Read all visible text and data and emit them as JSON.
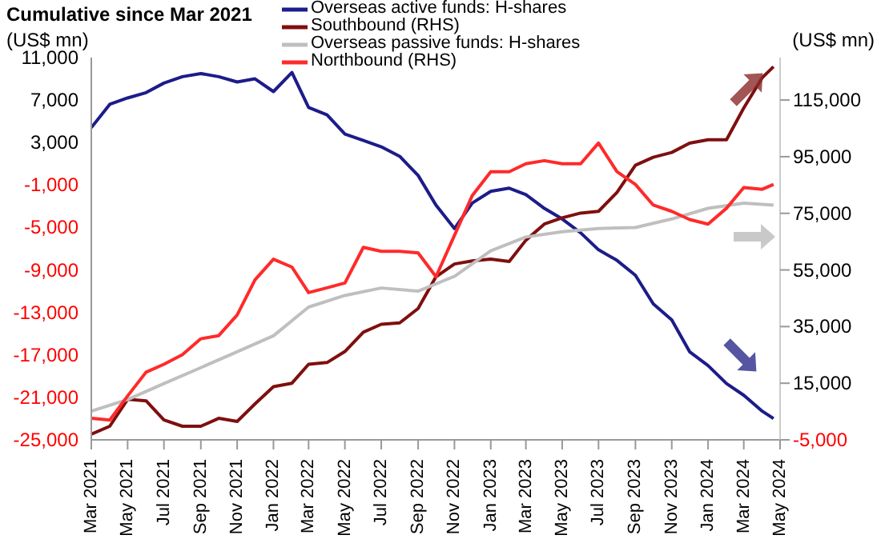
{
  "chart_data": {
    "type": "line",
    "title": "Cumulative since Mar 2021",
    "ylabel": "(US$ mn)",
    "y2label": "(US$ mn)",
    "x": [
      "2021-03",
      "2021-04",
      "2021-05",
      "2021-06",
      "2021-07",
      "2021-08",
      "2021-09",
      "2021-10",
      "2021-11",
      "2021-12",
      "2022-01",
      "2022-02",
      "2022-03",
      "2022-04",
      "2022-05",
      "2022-06",
      "2022-07",
      "2022-08",
      "2022-09",
      "2022-10",
      "2022-11",
      "2022-12",
      "2023-01",
      "2023-02",
      "2023-03",
      "2023-04",
      "2023-05",
      "2023-06",
      "2023-07",
      "2023-08",
      "2023-09",
      "2023-10",
      "2023-11",
      "2023-12",
      "2024-01",
      "2024-02",
      "2024-03",
      "2024-04",
      "2024-04-20"
    ],
    "series": [
      {
        "name": "Overseas active funds: H-shares",
        "color": "#1c1c8a",
        "values": [
          4400,
          6600,
          7200,
          7700,
          8600,
          9200,
          9500,
          9200,
          8700,
          9000,
          7800,
          9600,
          6300,
          5600,
          3800,
          3200,
          2600,
          1700,
          -100,
          -2900,
          -5100,
          -2700,
          -1600,
          -1300,
          -1900,
          -3200,
          -4200,
          -5500,
          -7100,
          -8100,
          -9500,
          -12200,
          -13700,
          -16700,
          -18000,
          -19700,
          -20800,
          -22300,
          -23000
        ]
      },
      {
        "name": "Southbound (RHS)",
        "color": "#7f0f0f",
        "axis": "y2",
        "values": [
          -3000,
          -200,
          9300,
          8800,
          2000,
          -200,
          -200,
          2600,
          1500,
          7700,
          13800,
          15000,
          21700,
          22300,
          26200,
          33000,
          35800,
          36300,
          41400,
          52600,
          57100,
          58200,
          58800,
          58000,
          65500,
          71200,
          73400,
          75100,
          75700,
          82400,
          92000,
          94800,
          96500,
          99800,
          101000,
          101000,
          112200,
          122900,
          126800
        ]
      },
      {
        "name": "Overseas passive funds: H-shares",
        "color": "#bfbfbf",
        "x": [
          "2021-03",
          "2021-05",
          "2021-07",
          "2021-09",
          "2021-11",
          "2022-01",
          "2022-03",
          "2022-05",
          "2022-07",
          "2022-09",
          "2022-11",
          "2023-01",
          "2023-03",
          "2023-05",
          "2023-07",
          "2023-09",
          "2023-11",
          "2024-01",
          "2024-03",
          "2024-04-20"
        ],
        "values": [
          -22300,
          -21200,
          -19700,
          -18200,
          -16700,
          -15200,
          -12500,
          -11400,
          -10700,
          -11000,
          -9600,
          -7200,
          -5900,
          -5400,
          -5100,
          -5000,
          -4200,
          -3200,
          -2700,
          -2900
        ]
      },
      {
        "name": "Northbound (RHS)",
        "color": "#ff2a2a",
        "axis": "y2",
        "values": [
          2600,
          2000,
          10500,
          18900,
          21700,
          25100,
          30700,
          31800,
          39100,
          51500,
          58800,
          56000,
          47000,
          48700,
          50400,
          63000,
          61600,
          61600,
          61000,
          52600,
          67200,
          81300,
          89700,
          89700,
          92500,
          93600,
          92500,
          92500,
          99800,
          89700,
          85200,
          77900,
          75700,
          72800,
          71200,
          76800,
          84100,
          83500,
          85200
        ]
      }
    ],
    "xlim": [
      "2021-03",
      "2024-05"
    ],
    "xticks": [
      {
        "value": "2021-03",
        "label": "Mar 2021"
      },
      {
        "value": "2021-05",
        "label": "May 2021"
      },
      {
        "value": "2021-07",
        "label": "Jul 2021"
      },
      {
        "value": "2021-09",
        "label": "Sep 2021"
      },
      {
        "value": "2021-11",
        "label": "Nov 2021"
      },
      {
        "value": "2022-01",
        "label": "Jan 2022"
      },
      {
        "value": "2022-03",
        "label": "Mar 2022"
      },
      {
        "value": "2022-05",
        "label": "May 2022"
      },
      {
        "value": "2022-07",
        "label": "Jul 2022"
      },
      {
        "value": "2022-09",
        "label": "Sep 2022"
      },
      {
        "value": "2022-11",
        "label": "Nov 2022"
      },
      {
        "value": "2023-01",
        "label": "Jan 2023"
      },
      {
        "value": "2023-03",
        "label": "Mar 2023"
      },
      {
        "value": "2023-05",
        "label": "May 2023"
      },
      {
        "value": "2023-07",
        "label": "Jul 2023"
      },
      {
        "value": "2023-09",
        "label": "Sep 2023"
      },
      {
        "value": "2023-11",
        "label": "Nov 2023"
      },
      {
        "value": "2024-01",
        "label": "Jan 2024"
      },
      {
        "value": "2024-03",
        "label": "Mar 2024"
      },
      {
        "value": "2024-05",
        "label": "May 2024"
      }
    ],
    "ylim": [
      -25000,
      11000
    ],
    "yticks": [
      {
        "value": 11000,
        "label": "11,000"
      },
      {
        "value": 7000,
        "label": "7,000"
      },
      {
        "value": 3000,
        "label": "3,000"
      },
      {
        "value": -1000,
        "label": "-1,000"
      },
      {
        "value": -5000,
        "label": "-5,000"
      },
      {
        "value": -9000,
        "label": "-9,000"
      },
      {
        "value": -13000,
        "label": "-13,000"
      },
      {
        "value": -17000,
        "label": "-17,000"
      },
      {
        "value": -21000,
        "label": "-21,000"
      },
      {
        "value": -25000,
        "label": "-25,000"
      }
    ],
    "y2lim": [
      -5000,
      130000
    ],
    "y2ticks": [
      {
        "value": -5000,
        "label": "-5,000"
      },
      {
        "value": 15000,
        "label": "15,000"
      },
      {
        "value": 35000,
        "label": "35,000"
      },
      {
        "value": 55000,
        "label": "55,000"
      },
      {
        "value": 75000,
        "label": "75,000"
      },
      {
        "value": 95000,
        "label": "95,000"
      },
      {
        "value": 115000,
        "label": "115,000"
      }
    ],
    "grid": false,
    "legend": "top",
    "marker": "none",
    "line_style": "solid"
  }
}
